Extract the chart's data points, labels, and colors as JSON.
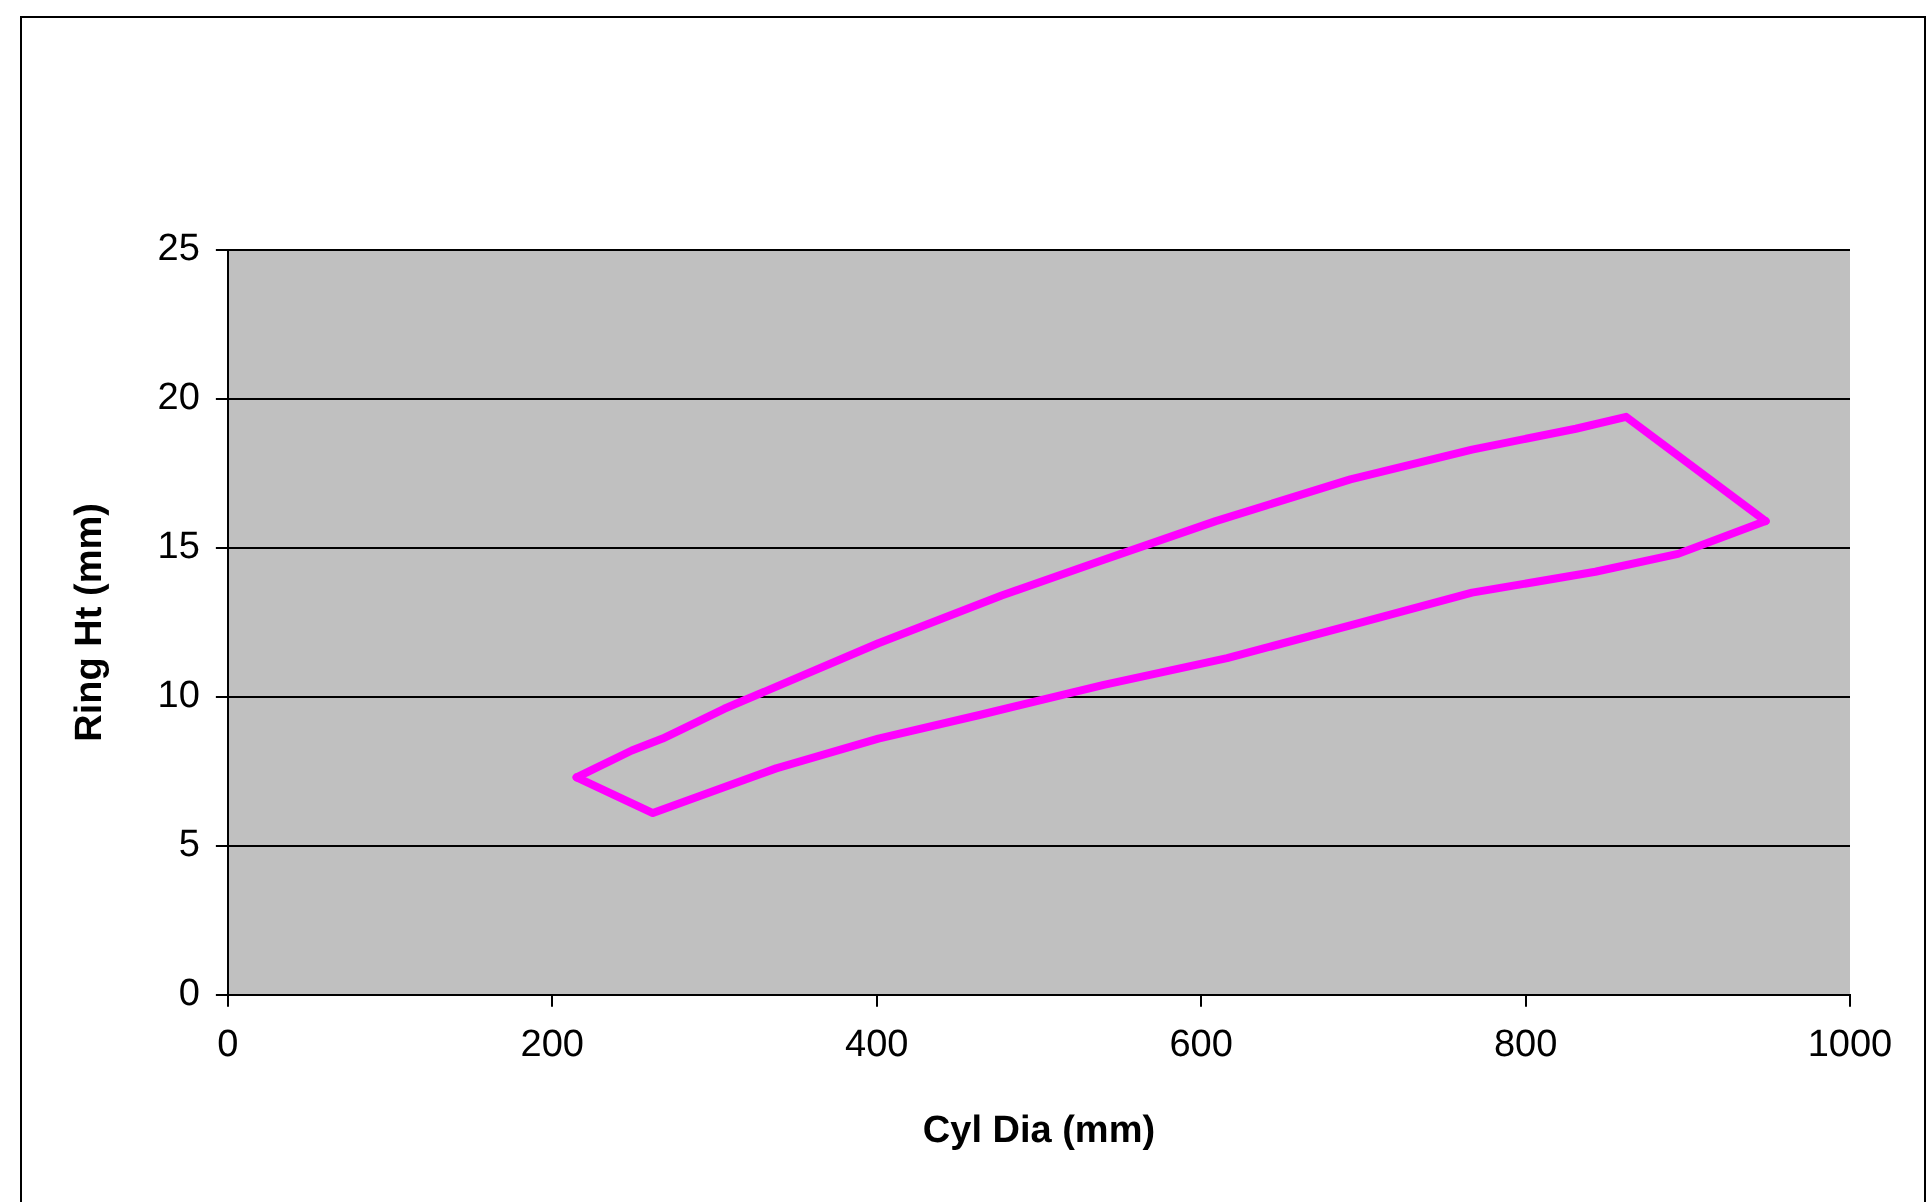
{
  "chart_data": {
    "type": "line",
    "xlabel": "Cyl Dia (mm)",
    "ylabel": "Ring Ht (mm)",
    "xlim": [
      0,
      1000
    ],
    "xticks": [
      0,
      200,
      400,
      600,
      800,
      1000
    ],
    "ylim": [
      0,
      25
    ],
    "yticks": [
      0,
      5,
      10,
      15,
      20,
      25
    ],
    "grid": "y",
    "legend": false,
    "marker": "none",
    "line_style": "solid",
    "series": [
      {
        "color": "#ff00ff",
        "x": [
          215,
          249,
          268,
          306,
          401,
          477,
          540,
          609,
          692,
          767,
          831,
          862,
          948
        ],
        "values": [
          7.3,
          8.2,
          8.6,
          9.6,
          11.8,
          13.4,
          14.6,
          15.9,
          17.3,
          18.3,
          19.0,
          19.4,
          15.9
        ]
      },
      {
        "color": "#ff00ff",
        "x": [
          215,
          262,
          338,
          401,
          464,
          540,
          616,
          692,
          767,
          843,
          894,
          948
        ],
        "values": [
          7.3,
          6.1,
          7.6,
          8.6,
          9.4,
          10.4,
          11.3,
          12.4,
          13.5,
          14.2,
          14.8,
          15.9
        ]
      }
    ]
  }
}
